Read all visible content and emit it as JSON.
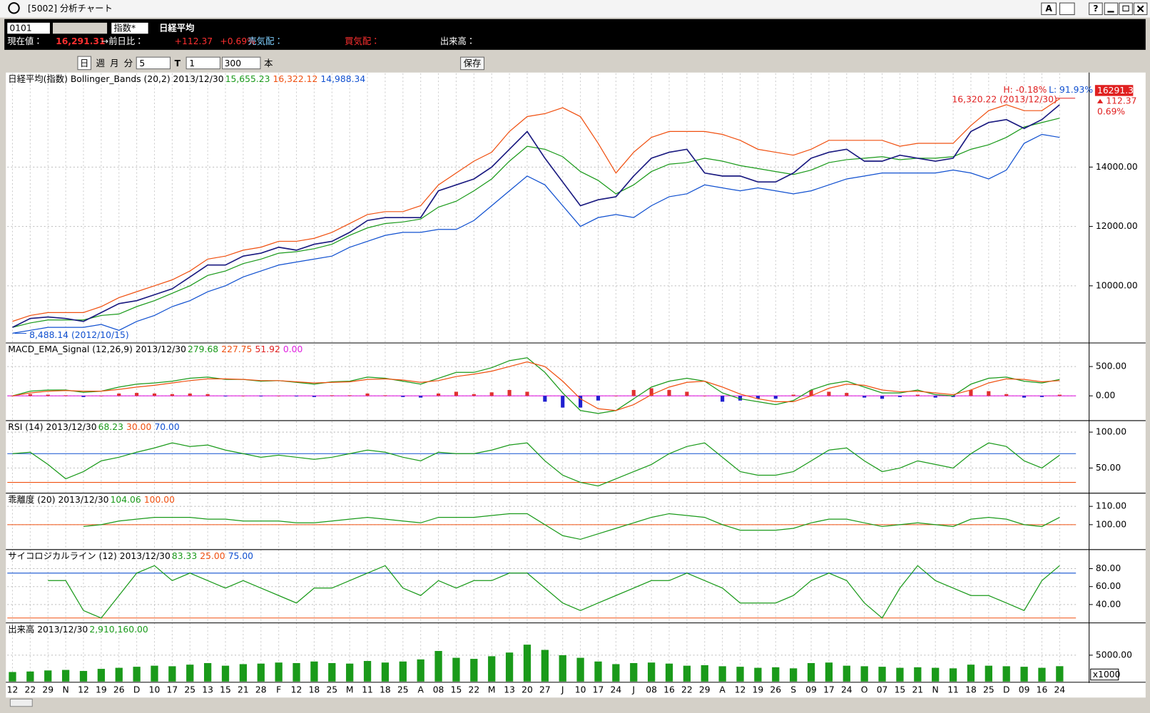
{
  "window": {
    "title": "[5002] 分析チャート",
    "font_button": "A",
    "help_button": "?"
  },
  "quote": {
    "code": "0101",
    "kind": "指数*",
    "name": "日経平均",
    "price_label": "現在値：",
    "price": "16,291.31",
    "change_label": "→前日比：",
    "change": "+112.37",
    "change_pct": "+0.69%",
    "ask_label": "売気配：",
    "bid_label": "買気配：",
    "volume_label": "出来高："
  },
  "toolbar": {
    "period_buttons": [
      "日",
      "週",
      "月",
      "分"
    ],
    "minutes": "5",
    "t_label": "T",
    "t_value": "1",
    "count": "300",
    "count_unit": "本",
    "save": "保存"
  },
  "chart_data": [
    {
      "type": "line",
      "title": "日経平均(指数) Bollinger_Bands (20,2) 2013/12/30",
      "header_values": [
        {
          "text": "15,655.23",
          "color": "#1a9a1a"
        },
        {
          "text": "16,322.12",
          "color": "#f05010"
        },
        {
          "text": "14,988.34",
          "color": "#1050d0"
        }
      ],
      "annotations": {
        "high_pct": "H: -0.18%",
        "low_pct": "L: 91.93%",
        "high": "16,320.22 (2013/12/30)",
        "low": "8,488.14 (2012/10/15)",
        "last": "16291.31",
        "change": "112.37",
        "change_pct": "0.69%"
      },
      "ylim": [
        8100,
        17160
      ],
      "yticks": [
        {
          "value": 10000,
          "label": "10000.00"
        },
        {
          "value": 12000,
          "label": "12000.00"
        },
        {
          "value": 14000,
          "label": "14000.00"
        }
      ],
      "series": [
        {
          "color": "#f05010",
          "values": [
            8800,
            9000,
            9100,
            9100,
            9100,
            9300,
            9600,
            9800,
            10000,
            10200,
            10500,
            10900,
            11000,
            11200,
            11300,
            11500,
            11500,
            11600,
            11800,
            12100,
            12400,
            12500,
            12500,
            12700,
            13400,
            13800,
            14200,
            14500,
            15200,
            15700,
            15800,
            16000,
            15700,
            14800,
            13800,
            14500,
            15000,
            15200,
            15200,
            15200,
            15100,
            14900,
            14600,
            14500,
            14400,
            14600,
            14900,
            14900,
            14900,
            14900,
            14700,
            14800,
            14800,
            14800,
            15400,
            15900,
            16100,
            15900,
            15900,
            16300
          ]
        },
        {
          "color": "#1a9a1a",
          "values": [
            8600,
            8750,
            8850,
            8850,
            8850,
            9000,
            9050,
            9300,
            9500,
            9750,
            10000,
            10350,
            10500,
            10750,
            10900,
            11100,
            11150,
            11250,
            11400,
            11700,
            11950,
            12100,
            12150,
            12250,
            12650,
            12850,
            13200,
            13600,
            14200,
            14700,
            14600,
            14350,
            13850,
            13550,
            13100,
            13400,
            13850,
            14100,
            14150,
            14300,
            14200,
            14050,
            13950,
            13850,
            13750,
            13900,
            14150,
            14250,
            14300,
            14350,
            14250,
            14300,
            14300,
            14350,
            14600,
            14750,
            15000,
            15350,
            15500,
            15650
          ]
        },
        {
          "color": "#1050d0",
          "values": [
            8400,
            8500,
            8600,
            8600,
            8600,
            8700,
            8500,
            8800,
            9000,
            9300,
            9500,
            9800,
            10000,
            10300,
            10500,
            10700,
            10800,
            10900,
            11000,
            11300,
            11500,
            11700,
            11800,
            11800,
            11900,
            11900,
            12200,
            12700,
            13200,
            13700,
            13400,
            12700,
            12000,
            12300,
            12400,
            12300,
            12700,
            13000,
            13100,
            13400,
            13300,
            13200,
            13300,
            13200,
            13100,
            13200,
            13400,
            13600,
            13700,
            13800,
            13800,
            13800,
            13800,
            13900,
            13800,
            13600,
            13900,
            14800,
            15100,
            15000
          ]
        },
        {
          "color": "#1a1a80",
          "values": [
            8600,
            8900,
            8950,
            8900,
            8800,
            9100,
            9400,
            9500,
            9700,
            9900,
            10300,
            10700,
            10700,
            11000,
            11100,
            11300,
            11200,
            11400,
            11500,
            11800,
            12200,
            12300,
            12300,
            12300,
            13200,
            13400,
            13600,
            14000,
            14600,
            15200,
            14300,
            13500,
            12700,
            12900,
            13000,
            13700,
            14300,
            14500,
            14600,
            13800,
            13700,
            13700,
            13500,
            13500,
            13800,
            14300,
            14500,
            14600,
            14200,
            14200,
            14400,
            14300,
            14200,
            14300,
            15200,
            15500,
            15600,
            15300,
            15600,
            16100
          ]
        }
      ]
    },
    {
      "type": "line",
      "title": "MACD_EMA_Signal (12,26,9) 2013/12/30",
      "header_values": [
        {
          "text": "279.68",
          "color": "#1a9a1a"
        },
        {
          "text": "227.75",
          "color": "#f05010"
        },
        {
          "text": "51.92",
          "color": "#e02020"
        },
        {
          "text": "0.00",
          "color": "#e020e0"
        }
      ],
      "ylim": [
        -410,
        890
      ],
      "yticks": [
        {
          "value": 0,
          "label": "0.00"
        },
        {
          "value": 500,
          "label": "500.00"
        }
      ],
      "ref_lines": [
        {
          "value": 0,
          "color": "#e020e0"
        }
      ],
      "series": [
        {
          "type": "bar",
          "color": "#e03030",
          "negative_color": "#2020d0",
          "values": [
            0,
            30,
            20,
            10,
            -20,
            0,
            40,
            50,
            40,
            30,
            40,
            30,
            -10,
            0,
            -10,
            0,
            -10,
            -20,
            10,
            10,
            40,
            10,
            -20,
            -30,
            40,
            70,
            30,
            60,
            100,
            70,
            -100,
            -200,
            -200,
            -80,
            0,
            100,
            130,
            100,
            70,
            0,
            -100,
            -80,
            -50,
            -50,
            20,
            100,
            70,
            50,
            -30,
            -50,
            -20,
            20,
            -30,
            -20,
            100,
            80,
            30,
            -30,
            -20,
            20
          ]
        },
        {
          "color": "#1a9a1a",
          "values": [
            0,
            80,
            100,
            100,
            60,
            80,
            150,
            200,
            220,
            250,
            300,
            320,
            280,
            280,
            250,
            260,
            230,
            200,
            240,
            250,
            320,
            300,
            250,
            200,
            300,
            400,
            400,
            480,
            600,
            650,
            400,
            50,
            -250,
            -300,
            -250,
            -50,
            150,
            250,
            300,
            250,
            50,
            -50,
            -100,
            -150,
            -80,
            100,
            200,
            250,
            150,
            50,
            50,
            100,
            20,
            0,
            200,
            300,
            320,
            250,
            220,
            280
          ]
        },
        {
          "color": "#f05010",
          "values": [
            0,
            50,
            80,
            90,
            80,
            80,
            110,
            150,
            180,
            220,
            260,
            290,
            290,
            280,
            260,
            260,
            240,
            220,
            230,
            240,
            280,
            290,
            270,
            230,
            260,
            330,
            370,
            420,
            500,
            580,
            500,
            250,
            -50,
            -220,
            -250,
            -150,
            20,
            150,
            230,
            250,
            150,
            30,
            -50,
            -100,
            -100,
            0,
            130,
            200,
            180,
            100,
            70,
            80,
            50,
            20,
            100,
            220,
            290,
            280,
            240,
            260
          ]
        }
      ]
    },
    {
      "type": "line",
      "title": "RSI (14) 2013/12/30",
      "header_values": [
        {
          "text": "68.23",
          "color": "#1a9a1a"
        },
        {
          "text": "30.00",
          "color": "#f05010"
        },
        {
          "text": "70.00",
          "color": "#1050d0"
        }
      ],
      "ylim": [
        16,
        115
      ],
      "yticks": [
        {
          "value": 50,
          "label": "50.00"
        },
        {
          "value": 100,
          "label": "100.00"
        }
      ],
      "ref_lines": [
        {
          "value": 70,
          "color": "#1050d0"
        },
        {
          "value": 30,
          "color": "#f05010"
        }
      ],
      "series": [
        {
          "color": "#1a9a1a",
          "values": [
            70,
            72,
            55,
            35,
            45,
            60,
            65,
            72,
            78,
            85,
            80,
            82,
            75,
            70,
            65,
            68,
            65,
            62,
            65,
            70,
            75,
            72,
            65,
            60,
            72,
            70,
            70,
            75,
            82,
            85,
            60,
            40,
            30,
            25,
            35,
            45,
            55,
            70,
            80,
            85,
            65,
            45,
            40,
            40,
            45,
            60,
            75,
            78,
            60,
            45,
            50,
            60,
            55,
            50,
            70,
            85,
            80,
            60,
            50,
            68
          ]
        }
      ]
    },
    {
      "type": "line",
      "title": "乖離度 (20) 2013/12/30",
      "header_values": [
        {
          "text": "104.06",
          "color": "#1a9a1a"
        },
        {
          "text": "100.00",
          "color": "#f05010"
        }
      ],
      "ylim": [
        86.8,
        116.8
      ],
      "yticks": [
        {
          "value": 100,
          "label": "100.00"
        },
        {
          "value": 110,
          "label": "110.00"
        }
      ],
      "ref_lines": [
        {
          "value": 100,
          "color": "#f05010"
        }
      ],
      "series": [
        {
          "color": "#1a9a1a",
          "values": [
            null,
            null,
            null,
            null,
            99,
            100,
            102,
            103,
            104,
            104,
            104,
            103,
            103,
            102,
            102,
            102,
            101,
            101,
            102,
            103,
            104,
            103,
            102,
            101,
            104,
            104,
            104,
            105,
            106,
            106,
            100,
            94,
            92,
            95,
            98,
            101,
            104,
            106,
            105,
            104,
            100,
            97,
            97,
            97,
            98,
            101,
            103,
            103,
            101,
            99,
            100,
            101,
            100,
            99,
            103,
            104,
            103,
            100,
            99,
            104
          ]
        }
      ]
    },
    {
      "type": "line",
      "title": "サイコロジカルライン (12) 2013/12/30",
      "header_values": [
        {
          "text": "83.33",
          "color": "#1a9a1a"
        },
        {
          "text": "25.00",
          "color": "#f05010"
        },
        {
          "text": "75.00",
          "color": "#1050d0"
        }
      ],
      "ylim": [
        20.4,
        100.4
      ],
      "yticks": [
        {
          "value": 40,
          "label": "40.00"
        },
        {
          "value": 60,
          "label": "60.00"
        },
        {
          "value": 80,
          "label": "80.00"
        }
      ],
      "ref_lines": [
        {
          "value": 75,
          "color": "#1050d0"
        },
        {
          "value": 25,
          "color": "#f05010"
        }
      ],
      "series": [
        {
          "color": "#1a9a1a",
          "values": [
            null,
            null,
            66.67,
            66.67,
            33.33,
            25,
            50,
            75,
            83.33,
            66.67,
            75,
            66.67,
            58.33,
            66.67,
            58.33,
            50,
            41.67,
            58.33,
            58.33,
            66.67,
            75,
            83.33,
            58.33,
            50,
            66.67,
            58.33,
            66.67,
            66.67,
            75,
            75,
            58.33,
            41.67,
            33.33,
            41.67,
            50,
            58.33,
            66.67,
            66.67,
            75,
            66.67,
            58.33,
            41.67,
            41.67,
            41.67,
            50,
            66.67,
            75,
            66.67,
            41.67,
            25,
            58.33,
            83.33,
            66.67,
            58.33,
            50,
            50,
            41.67,
            33.33,
            66.67,
            83.33
          ]
        }
      ]
    },
    {
      "type": "bar",
      "title": "出来高 2013/12/30",
      "header_values": [
        {
          "text": "2,910,160.00",
          "color": "#1a9a1a"
        }
      ],
      "unit_label": "x1000",
      "ylim": [
        0,
        11000
      ],
      "yticks": [
        {
          "value": 5000,
          "label": "5000.00"
        }
      ],
      "categories": [
        "12",
        "22",
        "29",
        "N",
        "12",
        "19",
        "26",
        "D",
        "10",
        "17",
        "25",
        "13",
        "15",
        "21",
        "28",
        "F",
        "12",
        "18",
        "25",
        "M",
        "11",
        "18",
        "25",
        "A",
        "08",
        "15",
        "22",
        "M",
        "13",
        "20",
        "27",
        "J",
        "10",
        "17",
        "24",
        "J",
        "08",
        "16",
        "22",
        "29",
        "A",
        "12",
        "19",
        "26",
        "S",
        "09",
        "17",
        "24",
        "O",
        "07",
        "15",
        "21",
        "N",
        "11",
        "18",
        "25",
        "D",
        "09",
        "16",
        "24"
      ],
      "series": [
        {
          "type": "bar",
          "color": "#1a9a1a",
          "values": [
            1800,
            1900,
            2100,
            2200,
            2000,
            2400,
            2600,
            2800,
            3000,
            2900,
            3200,
            3500,
            3000,
            3300,
            3400,
            3600,
            3500,
            3800,
            3500,
            3400,
            3900,
            3600,
            3800,
            4200,
            5800,
            4500,
            4300,
            4800,
            5500,
            7000,
            6000,
            5000,
            4500,
            3800,
            3300,
            3500,
            3600,
            3400,
            3000,
            3100,
            2900,
            2800,
            2600,
            2700,
            2500,
            3500,
            3600,
            3000,
            2900,
            2800,
            2600,
            2700,
            2600,
            2500,
            3200,
            3000,
            2900,
            2800,
            2600,
            2910
          ]
        }
      ]
    }
  ]
}
